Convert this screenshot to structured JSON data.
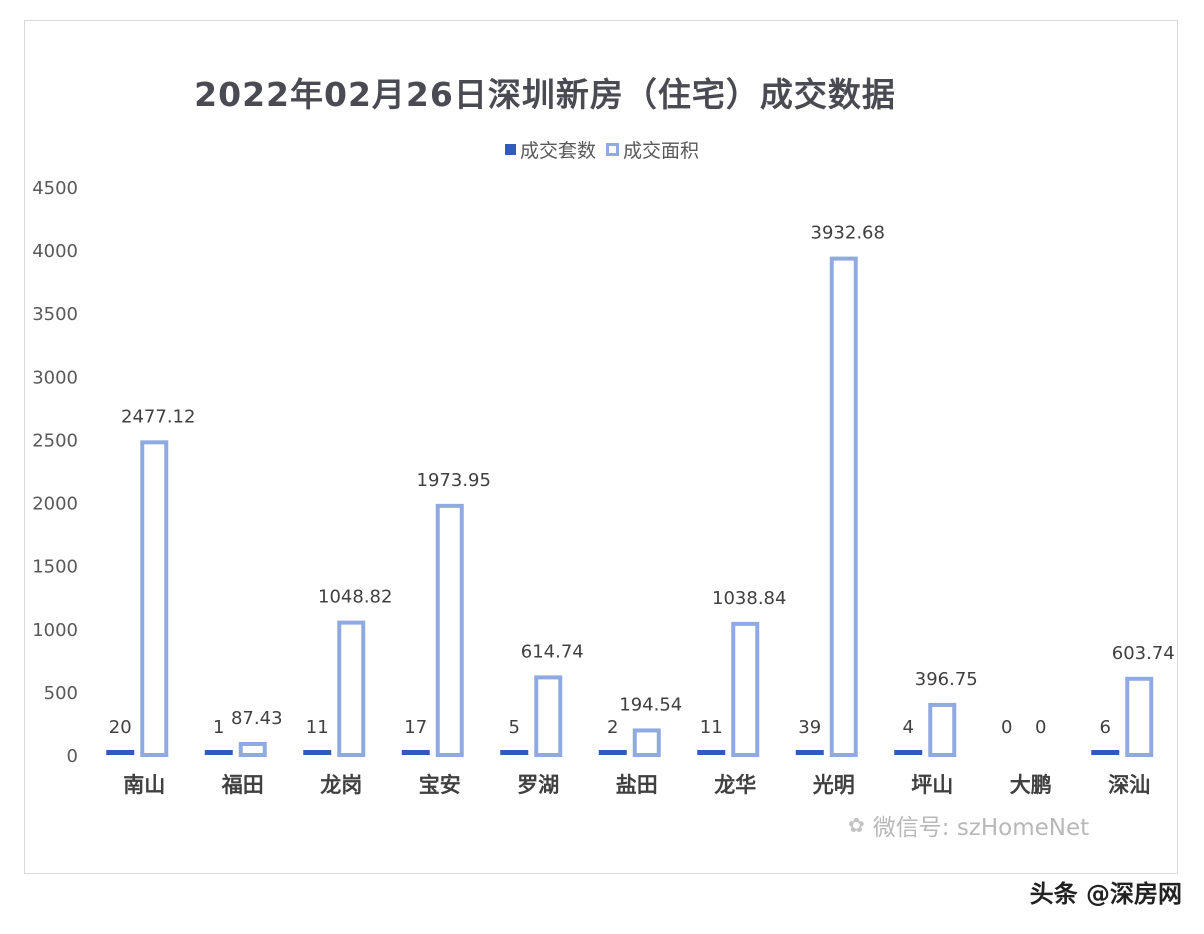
{
  "chart_data": {
    "type": "bar",
    "title": "2022年02月26日深圳新房（住宅）成交数据",
    "categories": [
      "南山",
      "福田",
      "龙岗",
      "宝安",
      "罗湖",
      "盐田",
      "龙华",
      "光明",
      "坪山",
      "大鹏",
      "深汕"
    ],
    "series": [
      {
        "name": "成交套数",
        "values": [
          20,
          1,
          11,
          17,
          5,
          2,
          11,
          39,
          4,
          0,
          6
        ],
        "labels": [
          "20",
          "1",
          "11",
          "17",
          "5",
          "2",
          "11",
          "39",
          "4",
          "0",
          "6"
        ],
        "style": "solid",
        "color": "#2e5cb8"
      },
      {
        "name": "成交面积",
        "values": [
          2477.12,
          87.43,
          1048.82,
          1973.95,
          614.74,
          194.54,
          1038.84,
          3932.68,
          396.75,
          0,
          603.74
        ],
        "labels": [
          "2477.12",
          "87.43",
          "1048.82",
          "1973.95",
          "614.74",
          "194.54",
          "1038.84",
          "3932.68",
          "396.75",
          "0",
          "603.74"
        ],
        "style": "outline",
        "color": "#8faae0"
      }
    ],
    "yticks": [
      "0",
      "500",
      "1000",
      "1500",
      "2000",
      "2500",
      "3000",
      "3500",
      "4000",
      "4500"
    ],
    "ylim": [
      0,
      4500
    ],
    "grid": false,
    "legend_position": "top-center"
  },
  "watermarks": {
    "wechat": "微信号: szHomeNet",
    "toutiao": "头条 @深房网"
  }
}
